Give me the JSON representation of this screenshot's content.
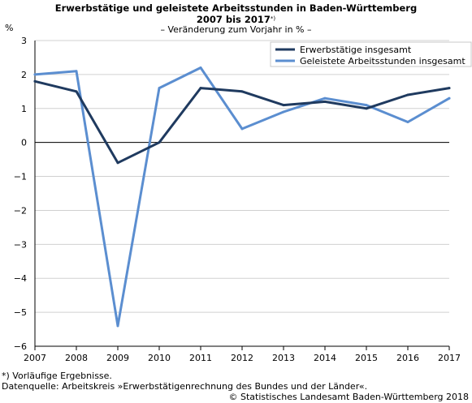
{
  "header": {
    "title_line1": "Erwerbstätige und geleistete Arbeitsstunden in Baden-Württemberg",
    "title_line2": "2007 bis 2017",
    "title_mark": "*)",
    "subtitle": "– Veränderung zum Vorjahr in % –",
    "unit": "%"
  },
  "footer": {
    "note": "*) Vorläufige Ergebnisse.",
    "source": "Datenquelle: Arbeitskreis »Erwerbstätigenrechnung des Bundes und der Länder«.",
    "copyright": "© Statistisches Landesamt Baden-Württemberg 2018"
  },
  "chart_data": {
    "type": "line",
    "x": [
      "2007",
      "2008",
      "2009",
      "2010",
      "2011",
      "2012",
      "2013",
      "2014",
      "2015",
      "2016",
      "2017"
    ],
    "y_ticks": [
      3,
      2,
      1,
      0,
      -1,
      -2,
      -3,
      -4,
      -5,
      -6
    ],
    "ylim": [
      -6,
      3
    ],
    "grid": "horizontal",
    "legend_position": "top-right",
    "series": [
      {
        "name": "Erwerbstätige insgesamt",
        "color": "#1f3a5f",
        "values": [
          1.8,
          1.5,
          -0.6,
          0.0,
          1.6,
          1.5,
          1.1,
          1.2,
          1.0,
          1.4,
          1.6
        ]
      },
      {
        "name": "Geleistete Arbeitsstunden insgesamt",
        "color": "#5b8ed0",
        "values": [
          2.0,
          2.1,
          -5.4,
          1.6,
          2.2,
          0.4,
          0.9,
          1.3,
          1.1,
          0.6,
          1.3
        ]
      }
    ]
  }
}
